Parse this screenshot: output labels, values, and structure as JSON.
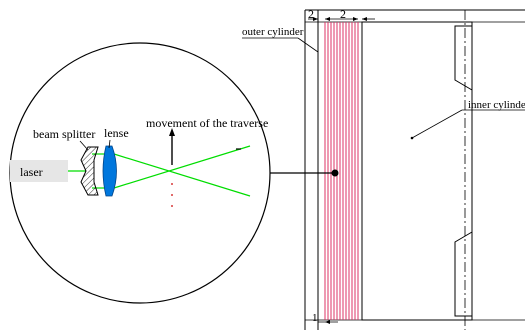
{
  "labels": {
    "outer_cylinder": "outer cylinder",
    "inner_cylinder": "inner cylinder",
    "beam_splitter": "beam splitter",
    "lense": "lense",
    "movement": "movement of the traverse",
    "laser": "laser",
    "dim_top_left": "2",
    "dim_top_gap": "2",
    "dim_bottom": "1"
  },
  "colors": {
    "laser_beam": "#00dd00",
    "lens_fill": "#0077dd",
    "measurement_lines": "#dd3366",
    "laser_box": "#e6e6e6",
    "dot_marks": "#cc0000"
  }
}
